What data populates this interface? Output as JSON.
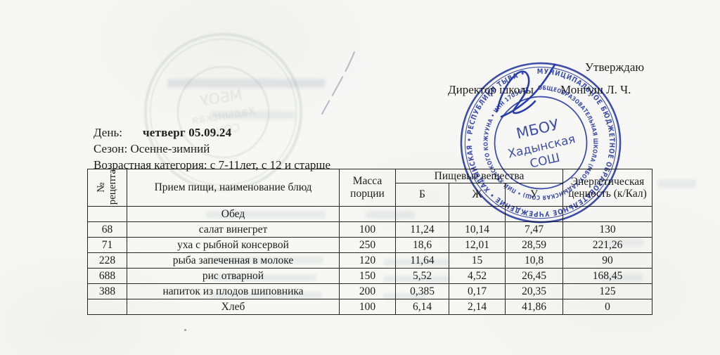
{
  "page": {
    "approve": "Утверждаю",
    "director_label": "Директор школы",
    "director_name": "Монгуш Л. Ч.",
    "day_label": "День:",
    "day_value": "четверг 05.09.24",
    "season_line": "Сезон: Осенне-зимний",
    "age_line": "Возрастная категория: с 7-11лет, с 12 и старше"
  },
  "stamp": {
    "color": "#2438a8",
    "ring_outer": "МУНИЦИПАЛЬНОЕ БЮДЖЕТНОЕ ОБРАЗОВАТЕЛЬНОЕ УЧРЕЖДЕНИЕ • ХАДЫНСКАЯ • РЕСПУБЛИКИ ТЫВА •",
    "ring_inner": "ОБЩЕОБРАЗОВАТЕЛЬНАЯ ШКОЛА (МБОУ ХАДЫНСКАЯ СОШ) • ПИЙ-ХЕМСКОГО КОЖУУНА • ИНН 1705641",
    "center_line1": "МБОУ",
    "center_line2": "Хадынская",
    "center_line3": "СОШ"
  },
  "table": {
    "col_headers": {
      "recipe_no_line1": "№",
      "recipe_no_line2": "рецепта",
      "meal": "Прием пищи, наименование блюд",
      "mass": "Масса порции",
      "nutrients_group": "Пищевые вещества",
      "protein": "Б",
      "fat": "Ж",
      "carbs": "У",
      "energy": "Энергетическая ценность (к/Кал)"
    },
    "section_title": "Обед",
    "rows": [
      {
        "num": "68",
        "dish": "салат винегрет",
        "mass": "100",
        "b": "11,24",
        "zh": "10,14",
        "u": "7,47",
        "kcal": "130"
      },
      {
        "num": "71",
        "dish": "уха с рыбной консервой",
        "mass": "250",
        "b": "18,6",
        "zh": "12,01",
        "u": "28,59",
        "kcal": "221,26"
      },
      {
        "num": "228",
        "dish": "рыба запеченная в молоке",
        "mass": "120",
        "b": "11,64",
        "zh": "15",
        "u": "10,8",
        "kcal": "90"
      },
      {
        "num": "688",
        "dish": "рис отварной",
        "mass": "150",
        "b": "5,52",
        "zh": "4,52",
        "u": "26,45",
        "kcal": "168,45"
      },
      {
        "num": "388",
        "dish": "напиток из плодов шиповника",
        "mass": "200",
        "b": "0,385",
        "zh": "0,17",
        "u": "20,35",
        "kcal": "125"
      },
      {
        "num": "",
        "dish": "Хлеб",
        "mass": "100",
        "b": "6,14",
        "zh": "2,14",
        "u": "41,86",
        "kcal": "0"
      }
    ]
  }
}
